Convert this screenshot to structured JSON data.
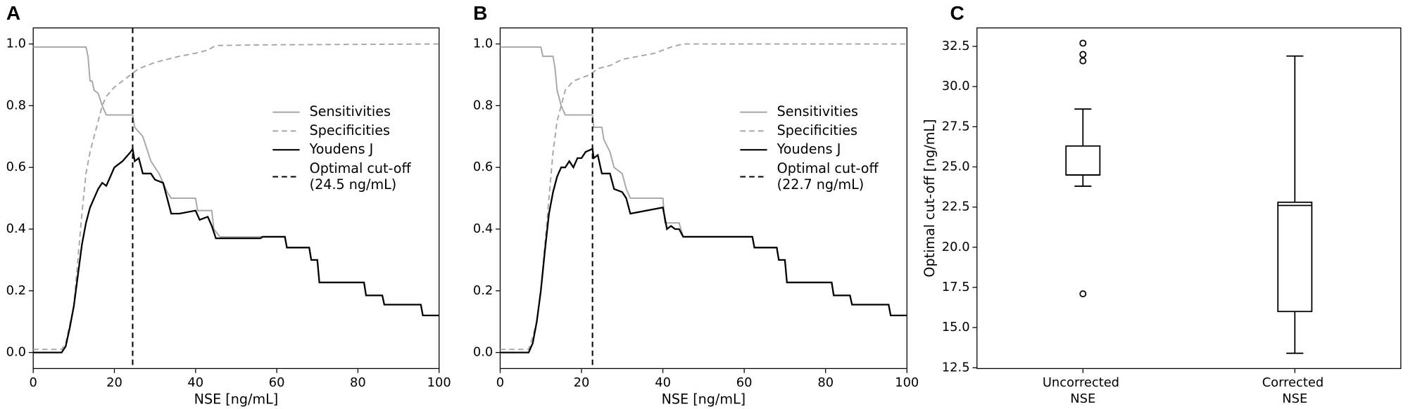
{
  "chart_data": [
    {
      "type": "line",
      "panel_label": "A",
      "x_label": "NSE [ng/mL]",
      "xlim": [
        0,
        100
      ],
      "ylim": [
        -0.052,
        1.052
      ],
      "xticks": [
        0,
        20,
        40,
        60,
        80,
        100
      ],
      "yticks": [
        {
          "value": 0,
          "label": "0.0"
        },
        0.2,
        0.4,
        0.6,
        0.8,
        {
          "value": 1,
          "label": "1.0"
        }
      ],
      "legend": "center right",
      "series": [
        {
          "name": "Sensitivities",
          "color": "#a6a6a6",
          "dash": "solid",
          "x": [
            0,
            13,
            13.5,
            14,
            14.5,
            15,
            16,
            17,
            18,
            24.5,
            25,
            27,
            28,
            29,
            31,
            32,
            33,
            34,
            40,
            40.5,
            44,
            44.5,
            46,
            56,
            56.5,
            62,
            62.5,
            68,
            68.5,
            70,
            70.5,
            81.5,
            82,
            86,
            86.5,
            95.5,
            96,
            100
          ],
          "values": [
            0.99,
            0.99,
            0.96,
            0.88,
            0.88,
            0.85,
            0.84,
            0.8,
            0.77,
            0.77,
            0.73,
            0.7,
            0.66,
            0.62,
            0.58,
            0.55,
            0.52,
            0.5,
            0.5,
            0.46,
            0.46,
            0.4,
            0.375,
            0.375,
            0.375,
            0.375,
            0.34,
            0.34,
            0.3,
            0.3,
            0.227,
            0.227,
            0.185,
            0.185,
            0.155,
            0.155,
            0.12,
            0.12
          ]
        },
        {
          "name": "Specificities",
          "color": "#a6a6a6",
          "dash": "dashed",
          "x": [
            0,
            7,
            8,
            10,
            11,
            12,
            13,
            14,
            15,
            16,
            17,
            18,
            20,
            22,
            24,
            26,
            28,
            30,
            33,
            36,
            40,
            43,
            45,
            56,
            100
          ],
          "values": [
            0.01,
            0.01,
            0.03,
            0.15,
            0.3,
            0.45,
            0.58,
            0.65,
            0.7,
            0.75,
            0.8,
            0.83,
            0.86,
            0.88,
            0.9,
            0.92,
            0.93,
            0.94,
            0.95,
            0.96,
            0.97,
            0.98,
            0.995,
            0.997,
            1.0
          ]
        },
        {
          "name": "Youdens J",
          "color": "#000000",
          "dash": "solid",
          "x": [
            0,
            7,
            8,
            9,
            10,
            11,
            12,
            13,
            14,
            15,
            16,
            17,
            18,
            19,
            20,
            22,
            24,
            24.5,
            25,
            26,
            27,
            29,
            30,
            32,
            33,
            34,
            36,
            40,
            41,
            43,
            44,
            45,
            56,
            56.5,
            62,
            62.5,
            68,
            68.5,
            70,
            70.5,
            81.5,
            82,
            86,
            86.5,
            95.5,
            96,
            100
          ],
          "values": [
            0,
            0,
            0.02,
            0.08,
            0.15,
            0.25,
            0.35,
            0.42,
            0.47,
            0.5,
            0.53,
            0.55,
            0.54,
            0.57,
            0.6,
            0.62,
            0.65,
            0.66,
            0.62,
            0.63,
            0.58,
            0.58,
            0.56,
            0.55,
            0.5,
            0.45,
            0.45,
            0.46,
            0.43,
            0.44,
            0.41,
            0.37,
            0.37,
            0.375,
            0.375,
            0.34,
            0.34,
            0.3,
            0.3,
            0.227,
            0.227,
            0.185,
            0.185,
            0.155,
            0.155,
            0.12,
            0.12
          ]
        }
      ],
      "cutoff": {
        "name": "Optimal cut-off (24.5 ng/mL)",
        "value": 24.5,
        "color": "#000000"
      }
    },
    {
      "type": "line",
      "panel_label": "B",
      "x_label": "NSE [ng/mL]",
      "xlim": [
        0,
        100
      ],
      "ylim": [
        -0.052,
        1.052
      ],
      "xticks": [
        0,
        20,
        40,
        60,
        80,
        100
      ],
      "yticks": [
        {
          "value": 0,
          "label": "0.0"
        },
        0.2,
        0.4,
        0.6,
        0.8,
        {
          "value": 1,
          "label": "1.0"
        }
      ],
      "legend": "center right",
      "series": [
        {
          "name": "Sensitivities",
          "color": "#a6a6a6",
          "dash": "solid",
          "x": [
            0,
            10,
            10.5,
            13,
            13.5,
            14,
            15,
            16,
            22.7,
            23,
            25,
            25.5,
            27,
            28,
            30,
            31,
            32,
            40,
            40.5,
            44,
            45,
            56,
            56.5,
            62,
            62.5,
            68,
            68.5,
            70,
            70.5,
            81.5,
            82,
            86,
            86.5,
            95.5,
            96,
            100
          ],
          "values": [
            0.99,
            0.99,
            0.96,
            0.96,
            0.92,
            0.85,
            0.8,
            0.77,
            0.77,
            0.73,
            0.73,
            0.69,
            0.65,
            0.6,
            0.58,
            0.53,
            0.5,
            0.5,
            0.42,
            0.42,
            0.375,
            0.375,
            0.375,
            0.375,
            0.34,
            0.34,
            0.3,
            0.3,
            0.227,
            0.227,
            0.185,
            0.185,
            0.155,
            0.155,
            0.12,
            0.12
          ]
        },
        {
          "name": "Specificities",
          "color": "#a6a6a6",
          "dash": "dashed",
          "x": [
            0,
            7,
            8,
            9,
            10,
            11,
            12,
            13,
            14,
            15,
            16,
            18,
            20,
            22,
            24,
            27,
            30,
            34,
            38,
            42,
            45,
            100
          ],
          "values": [
            0.01,
            0.01,
            0.05,
            0.1,
            0.2,
            0.35,
            0.5,
            0.65,
            0.75,
            0.8,
            0.85,
            0.88,
            0.89,
            0.9,
            0.92,
            0.93,
            0.95,
            0.96,
            0.97,
            0.99,
            1.0,
            1.0
          ]
        },
        {
          "name": "Youdens J",
          "color": "#000000",
          "dash": "solid",
          "x": [
            0,
            7,
            8,
            9,
            10,
            11,
            12,
            13,
            14,
            15,
            16,
            17,
            18,
            19,
            20,
            21,
            22.7,
            23,
            24,
            25,
            27,
            28,
            30,
            31,
            32,
            40,
            41,
            42,
            43,
            44,
            45,
            56,
            56.5,
            62,
            62.5,
            68,
            68.5,
            70,
            70.5,
            81.5,
            82,
            86,
            86.5,
            95.5,
            96,
            100
          ],
          "values": [
            0,
            0,
            0.03,
            0.1,
            0.2,
            0.33,
            0.45,
            0.52,
            0.57,
            0.6,
            0.6,
            0.62,
            0.6,
            0.63,
            0.63,
            0.65,
            0.66,
            0.63,
            0.64,
            0.58,
            0.58,
            0.53,
            0.52,
            0.5,
            0.45,
            0.47,
            0.4,
            0.41,
            0.4,
            0.4,
            0.375,
            0.375,
            0.375,
            0.375,
            0.34,
            0.34,
            0.3,
            0.3,
            0.227,
            0.227,
            0.185,
            0.185,
            0.155,
            0.155,
            0.12,
            0.12
          ]
        }
      ],
      "cutoff": {
        "name": "Optimal cut-off (22.7 ng/mL)",
        "value": 22.7,
        "color": "#000000"
      }
    },
    {
      "type": "box",
      "panel_label": "C",
      "y_label": "Optimal cut-off [ng/mL]",
      "categories": [
        "Uncorrected NSE",
        "Corrected NSE"
      ],
      "ylim": [
        12.45,
        33.65
      ],
      "yticks": [
        12.5,
        {
          "value": 15,
          "label": "15.0"
        },
        17.5,
        {
          "value": 20,
          "label": "20.0"
        },
        22.5,
        {
          "value": 25,
          "label": "25.0"
        },
        27.5,
        {
          "value": 30,
          "label": "30.0"
        },
        32.5
      ],
      "color": "#000000",
      "boxes": [
        {
          "whislo": 23.8,
          "q1": 24.5,
          "med": 24.5,
          "q3": 26.3,
          "whishi": 28.6,
          "outliers": [
            32.7,
            32.0,
            31.6,
            17.1
          ]
        },
        {
          "whislo": 13.4,
          "q1": 16.0,
          "med": 22.6,
          "q3": 22.8,
          "whishi": 31.9,
          "outliers": []
        }
      ]
    }
  ]
}
